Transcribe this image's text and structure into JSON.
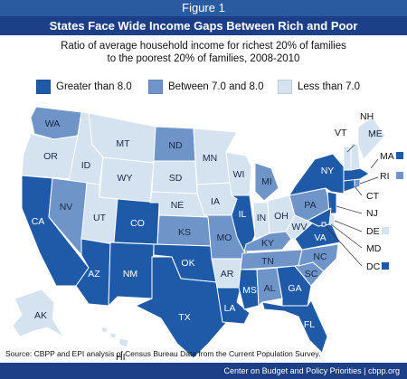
{
  "figure_label": "Figure 1",
  "title": "States Face Wide Income Gaps Between Rich and Poor",
  "subtitle_line1": "Ratio of average household income for richest 20% of families",
  "subtitle_line2": "to the poorest 20% of families, 2008-2010",
  "legend": [
    {
      "label": "Greater than 8.0",
      "color": "#1e5aa8"
    },
    {
      "label": "Between 7.0 and 8.0",
      "color": "#6e94c8"
    },
    {
      "label": "Less than 7.0",
      "color": "#d5e2f0"
    }
  ],
  "map_data": {
    "categories": {
      "high": "Greater than 8.0",
      "mid": "Between 7.0 and 8.0",
      "low": "Less than 7.0"
    },
    "states": [
      {
        "abbr": "WA",
        "category": "mid"
      },
      {
        "abbr": "OR",
        "category": "low"
      },
      {
        "abbr": "CA",
        "category": "high"
      },
      {
        "abbr": "ID",
        "category": "low"
      },
      {
        "abbr": "NV",
        "category": "mid"
      },
      {
        "abbr": "AZ",
        "category": "high"
      },
      {
        "abbr": "MT",
        "category": "low"
      },
      {
        "abbr": "WY",
        "category": "low"
      },
      {
        "abbr": "UT",
        "category": "low"
      },
      {
        "abbr": "CO",
        "category": "high"
      },
      {
        "abbr": "NM",
        "category": "high"
      },
      {
        "abbr": "ND",
        "category": "mid"
      },
      {
        "abbr": "SD",
        "category": "low"
      },
      {
        "abbr": "NE",
        "category": "low"
      },
      {
        "abbr": "KS",
        "category": "mid"
      },
      {
        "abbr": "OK",
        "category": "high"
      },
      {
        "abbr": "TX",
        "category": "high"
      },
      {
        "abbr": "MN",
        "category": "low"
      },
      {
        "abbr": "IA",
        "category": "low"
      },
      {
        "abbr": "MO",
        "category": "mid"
      },
      {
        "abbr": "AR",
        "category": "low"
      },
      {
        "abbr": "LA",
        "category": "high"
      },
      {
        "abbr": "WI",
        "category": "low"
      },
      {
        "abbr": "IL",
        "category": "high"
      },
      {
        "abbr": "MI",
        "category": "mid"
      },
      {
        "abbr": "IN",
        "category": "low"
      },
      {
        "abbr": "OH",
        "category": "low"
      },
      {
        "abbr": "KY",
        "category": "mid"
      },
      {
        "abbr": "TN",
        "category": "mid"
      },
      {
        "abbr": "MS",
        "category": "high"
      },
      {
        "abbr": "AL",
        "category": "mid"
      },
      {
        "abbr": "GA",
        "category": "high"
      },
      {
        "abbr": "FL",
        "category": "high"
      },
      {
        "abbr": "SC",
        "category": "mid"
      },
      {
        "abbr": "NC",
        "category": "mid"
      },
      {
        "abbr": "VA",
        "category": "high"
      },
      {
        "abbr": "WV",
        "category": "low"
      },
      {
        "abbr": "PA",
        "category": "mid"
      },
      {
        "abbr": "NY",
        "category": "high"
      },
      {
        "abbr": "NJ",
        "category": "high"
      },
      {
        "abbr": "DE",
        "category": "low"
      },
      {
        "abbr": "MD",
        "category": "high"
      },
      {
        "abbr": "DC",
        "category": "high"
      },
      {
        "abbr": "CT",
        "category": "high"
      },
      {
        "abbr": "RI",
        "category": "mid"
      },
      {
        "abbr": "MA",
        "category": "high"
      },
      {
        "abbr": "VT",
        "category": "low"
      },
      {
        "abbr": "NH",
        "category": "low"
      },
      {
        "abbr": "ME",
        "category": "low"
      },
      {
        "abbr": "AK",
        "category": "low"
      },
      {
        "abbr": "HI",
        "category": "low"
      }
    ]
  },
  "source": "Source: CBPP and EPI analysis of Census Bureau Data from the Current Population Survey.",
  "footer": "Center on Budget and Policy Priorities | cbpp.org"
}
